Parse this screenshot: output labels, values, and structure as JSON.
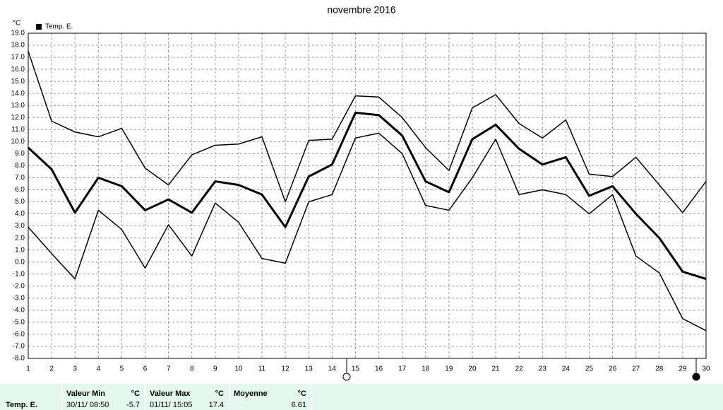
{
  "chart_data": {
    "type": "line",
    "title": "novembre 2016",
    "y_unit": "°C",
    "x": [
      1,
      2,
      3,
      4,
      5,
      6,
      7,
      8,
      9,
      10,
      11,
      12,
      13,
      14,
      15,
      16,
      17,
      18,
      19,
      20,
      21,
      22,
      23,
      24,
      25,
      26,
      27,
      28,
      29,
      30
    ],
    "xlim": [
      1,
      30
    ],
    "series": [
      {
        "name": "Temp. E.",
        "color": "#000000",
        "width": 3,
        "values": [
          9.5,
          7.7,
          4.1,
          7.0,
          6.3,
          4.3,
          5.2,
          4.1,
          6.7,
          6.4,
          5.6,
          2.9,
          7.1,
          8.1,
          12.4,
          12.2,
          10.5,
          6.7,
          5.8,
          10.2,
          11.4,
          9.4,
          8.1,
          8.7,
          5.5,
          6.3,
          4.0,
          2.0,
          -0.8,
          -1.4
        ]
      },
      {
        "color": "#000000",
        "width": 1.5,
        "values": [
          17.5,
          11.7,
          10.8,
          10.4,
          11.1,
          7.8,
          6.4,
          8.9,
          9.7,
          9.8,
          10.4,
          5.0,
          10.1,
          10.2,
          13.8,
          13.7,
          12.0,
          9.5,
          7.6,
          12.8,
          13.9,
          11.5,
          10.3,
          11.8,
          7.3,
          7.1,
          8.7,
          6.4,
          4.1,
          6.7
        ]
      },
      {
        "color": "#000000",
        "width": 1.5,
        "values": [
          2.9,
          0.7,
          -1.4,
          4.3,
          2.7,
          -0.5,
          3.1,
          0.5,
          4.9,
          3.3,
          0.3,
          -0.1,
          5.0,
          5.6,
          10.3,
          10.7,
          9.0,
          4.7,
          4.3,
          7.0,
          10.2,
          5.6,
          6.0,
          5.6,
          4.0,
          5.6,
          0.5,
          -0.9,
          -4.7,
          -5.7
        ]
      }
    ],
    "ylim": [
      -8,
      19
    ],
    "yticks": [
      {
        "value": 19,
        "label": "19.0"
      },
      {
        "value": 18,
        "label": "18.0"
      },
      {
        "value": 17,
        "label": "17.0"
      },
      {
        "value": 16,
        "label": "16.0"
      },
      {
        "value": 15,
        "label": "15.0"
      },
      {
        "value": 14,
        "label": "14.0"
      },
      {
        "value": 13,
        "label": "13.0"
      },
      {
        "value": 12,
        "label": "12.0"
      },
      {
        "value": 11,
        "label": "11.0"
      },
      {
        "value": 10,
        "label": "10.0"
      },
      {
        "value": 9,
        "label": "9.0"
      },
      {
        "value": 8,
        "label": "8.0"
      },
      {
        "value": 7,
        "label": "7.0"
      },
      {
        "value": 6,
        "label": "6.0"
      },
      {
        "value": 5,
        "label": "5.0"
      },
      {
        "value": 4,
        "label": "4.0"
      },
      {
        "value": 3,
        "label": "3.0"
      },
      {
        "value": 2,
        "label": "2.0"
      },
      {
        "value": 1,
        "label": "1.0"
      },
      {
        "value": 0,
        "label": "0.0"
      },
      {
        "value": -1,
        "label": "-1.0"
      },
      {
        "value": -2,
        "label": "-2.0"
      },
      {
        "value": -3,
        "label": "-3.0"
      },
      {
        "value": -4,
        "label": "-4.0"
      },
      {
        "value": -5,
        "label": "-5.0"
      },
      {
        "value": -6,
        "label": "-6.0"
      },
      {
        "value": -7,
        "label": "-7.0"
      },
      {
        "value": -8,
        "label": "-8.0"
      }
    ],
    "grid": true
  },
  "footer": {
    "label": "Temp. E.",
    "min": {
      "title": "Valeur Min",
      "unit": "°C",
      "date": "30/11/ 08:50",
      "value": -5.7
    },
    "max": {
      "title": "Valeur Max",
      "unit": "°C",
      "date": "01/11/ 15:05",
      "value": 17.4
    },
    "mean": {
      "title": "Moyenne",
      "unit": "°C",
      "value": 6.61
    }
  }
}
